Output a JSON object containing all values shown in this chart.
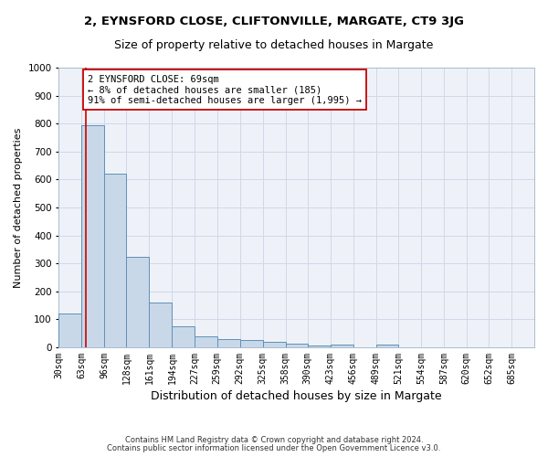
{
  "title1": "2, EYNSFORD CLOSE, CLIFTONVILLE, MARGATE, CT9 3JG",
  "title2": "Size of property relative to detached houses in Margate",
  "xlabel": "Distribution of detached houses by size in Margate",
  "ylabel": "Number of detached properties",
  "footer1": "Contains HM Land Registry data © Crown copyright and database right 2024.",
  "footer2": "Contains public sector information licensed under the Open Government Licence v3.0.",
  "bin_labels": [
    "30sqm",
    "63sqm",
    "96sqm",
    "128sqm",
    "161sqm",
    "194sqm",
    "227sqm",
    "259sqm",
    "292sqm",
    "325sqm",
    "358sqm",
    "390sqm",
    "423sqm",
    "456sqm",
    "489sqm",
    "521sqm",
    "554sqm",
    "587sqm",
    "620sqm",
    "652sqm",
    "685sqm"
  ],
  "bin_edges": [
    30,
    63,
    96,
    128,
    161,
    194,
    227,
    259,
    292,
    325,
    358,
    390,
    423,
    456,
    489,
    521,
    554,
    587,
    620,
    652,
    685,
    718
  ],
  "bar_heights": [
    120,
    795,
    620,
    325,
    160,
    75,
    40,
    28,
    25,
    18,
    12,
    5,
    10,
    0,
    10,
    0,
    0,
    0,
    0,
    0,
    0
  ],
  "bar_color": "#c8d8e8",
  "bar_edge_color": "#6090b8",
  "property_size": 69,
  "property_line_color": "#cc0000",
  "annotation_text": "2 EYNSFORD CLOSE: 69sqm\n← 8% of detached houses are smaller (185)\n91% of semi-detached houses are larger (1,995) →",
  "annotation_box_color": "#ffffff",
  "annotation_border_color": "#cc0000",
  "ylim": [
    0,
    1000
  ],
  "xlim": [
    30,
    718
  ],
  "grid_color": "#d0d8e8",
  "bg_color": "#eef2f8",
  "title1_fontsize": 9.5,
  "title2_fontsize": 9,
  "xlabel_fontsize": 9,
  "ylabel_fontsize": 8,
  "tick_fontsize": 7,
  "annotation_fontsize": 7.5,
  "footer_fontsize": 6
}
